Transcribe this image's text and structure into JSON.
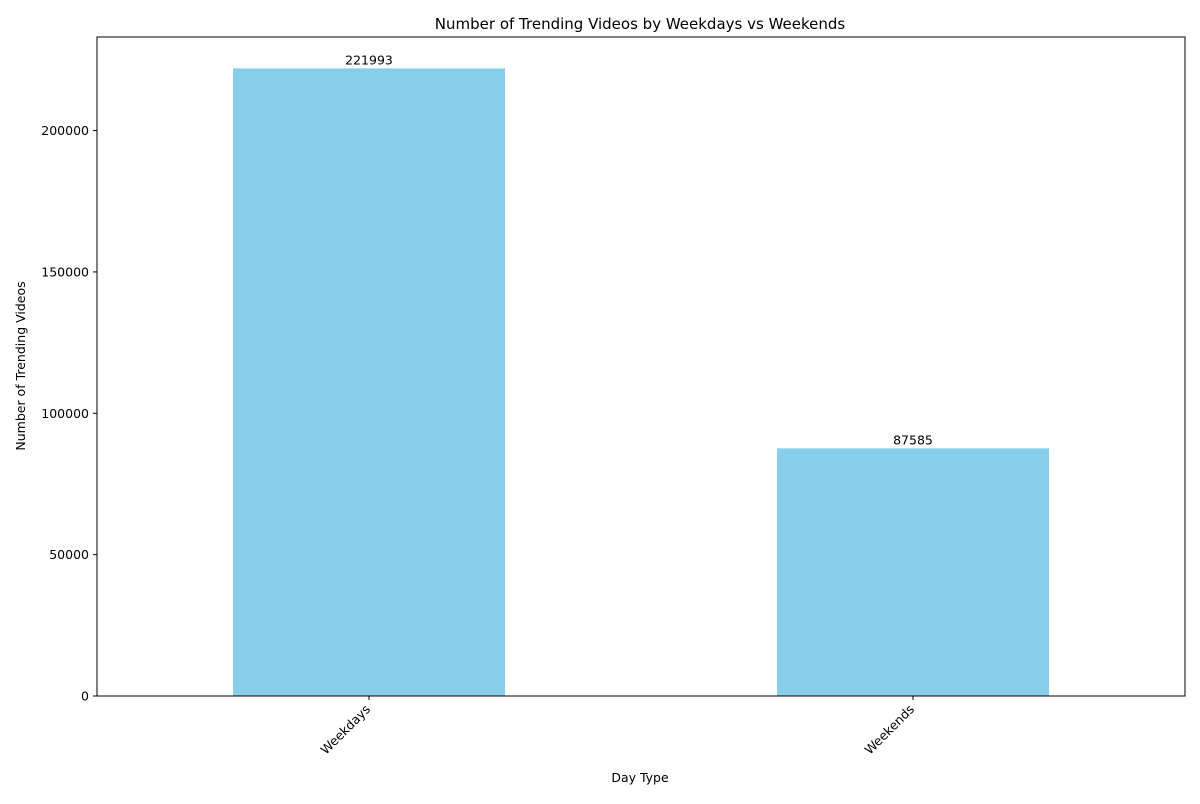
{
  "chart_data": {
    "type": "bar",
    "title": "Number of Trending Videos by Weekdays vs Weekends",
    "xlabel": "Day Type",
    "ylabel": "Number of Trending Videos",
    "categories": [
      "Weekdays",
      "Weekends"
    ],
    "values": [
      221993,
      87585
    ],
    "data_labels": [
      "221993",
      "87585"
    ],
    "ylim": [
      0,
      233093
    ],
    "yticks": [
      0,
      50000,
      100000,
      150000,
      200000
    ],
    "bar_color": "#87CEEB",
    "grid": false,
    "legend": "none"
  }
}
